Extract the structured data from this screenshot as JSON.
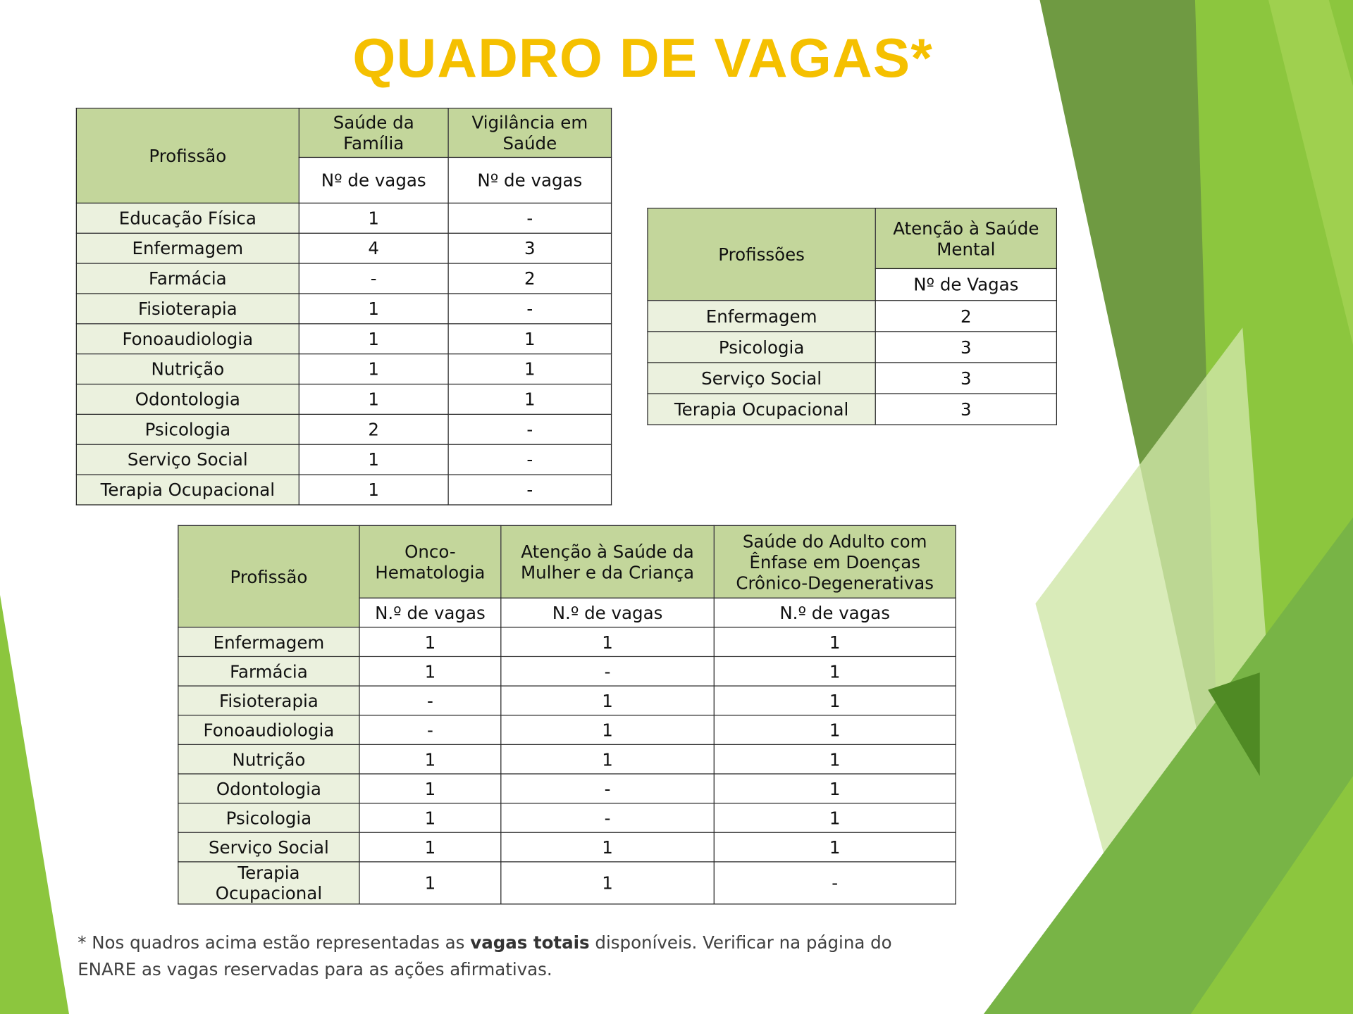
{
  "title": "QUADRO DE VAGAS*",
  "table1": {
    "header": {
      "profession": "Profissão",
      "groups": [
        "Saúde da Família",
        "Vigilância em Saúde"
      ],
      "units": [
        "Nº de vagas",
        "Nº de vagas"
      ]
    },
    "rows": [
      [
        "Educação Física",
        "1",
        "-"
      ],
      [
        "Enfermagem",
        "4",
        "3"
      ],
      [
        "Farmácia",
        "-",
        "2"
      ],
      [
        "Fisioterapia",
        "1",
        "-"
      ],
      [
        "Fonoaudiologia",
        "1",
        "1"
      ],
      [
        "Nutrição",
        "1",
        "1"
      ],
      [
        "Odontologia",
        "1",
        "1"
      ],
      [
        "Psicologia",
        "2",
        "-"
      ],
      [
        "Serviço Social",
        "1",
        "-"
      ],
      [
        "Terapia Ocupacional",
        "1",
        "-"
      ]
    ]
  },
  "table2": {
    "header": {
      "profession": "Profissões",
      "groups": [
        "Atenção à Saúde Mental"
      ],
      "units": [
        "Nº de Vagas"
      ]
    },
    "rows": [
      [
        "Enfermagem",
        "2"
      ],
      [
        "Psicologia",
        "3"
      ],
      [
        "Serviço Social",
        "3"
      ],
      [
        "Terapia Ocupacional",
        "3"
      ]
    ]
  },
  "table3": {
    "header": {
      "profession": "Profissão",
      "groups": [
        "Onco-Hematologia",
        "Atenção à Saúde da Mulher e da Criança",
        "Saúde do Adulto com Ênfase em Doenças Crônico-Degenerativas"
      ],
      "units": [
        "N.º de vagas",
        "N.º de vagas",
        "N.º de vagas"
      ]
    },
    "rows": [
      [
        "Enfermagem",
        "1",
        "1",
        "1"
      ],
      [
        "Farmácia",
        "1",
        "-",
        "1"
      ],
      [
        "Fisioterapia",
        "-",
        "1",
        "1"
      ],
      [
        "Fonoaudiologia",
        "-",
        "1",
        "1"
      ],
      [
        "Nutrição",
        "1",
        "1",
        "1"
      ],
      [
        "Odontologia",
        "1",
        "-",
        "1"
      ],
      [
        "Psicologia",
        "1",
        "-",
        "1"
      ],
      [
        "Serviço Social",
        "1",
        "1",
        "1"
      ],
      [
        "Terapia Ocupacional",
        "1",
        "1",
        "-"
      ]
    ]
  },
  "footnote": {
    "parts": [
      "* Nos quadros acima estão representadas as ",
      "vagas totais",
      " disponíveis. Verificar na página do ENARE as vagas reservadas para as ações afirmativas."
    ]
  }
}
